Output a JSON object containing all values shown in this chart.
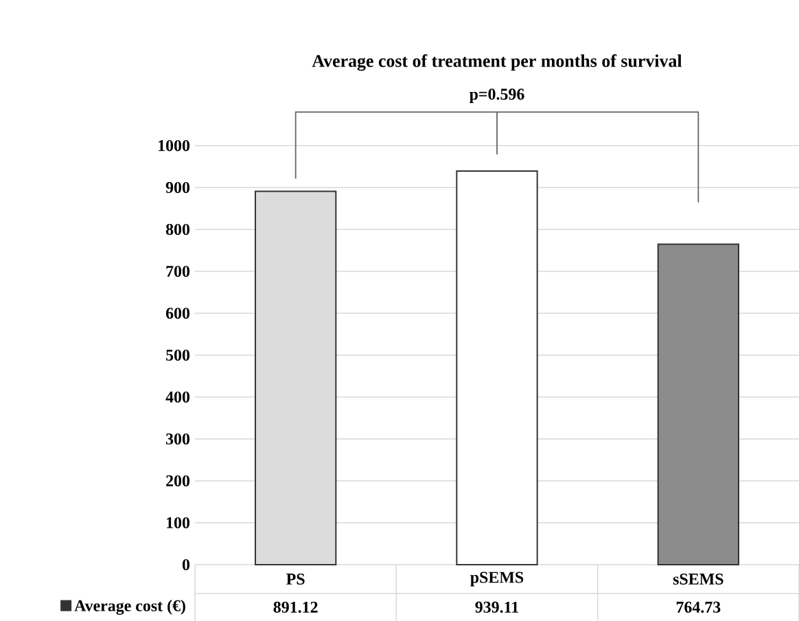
{
  "chart_data": {
    "type": "bar",
    "title": "Average cost of treatment per months of survival",
    "categories": [
      "PS",
      "pSEMS",
      "sSEMS"
    ],
    "series": [
      {
        "name": "Average cost (€)",
        "color": "#333333",
        "colors": [
          "#dcdcdc",
          "#ffffff",
          "#8c8c8c"
        ],
        "values": [
          891.12,
          939.11,
          764.73
        ]
      }
    ],
    "ylim": [
      0,
      1000
    ],
    "yticks": [
      0,
      100,
      200,
      300,
      400,
      500,
      600,
      700,
      800,
      900,
      1000
    ],
    "grid": "y",
    "data_labels": true,
    "annotations": [
      "p=0.596"
    ]
  }
}
